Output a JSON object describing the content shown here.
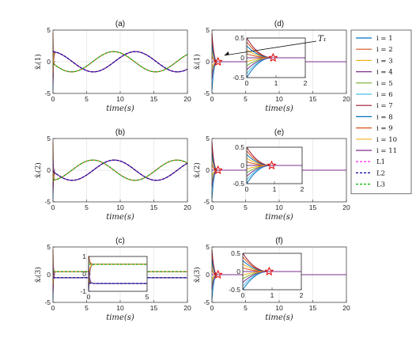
{
  "chart_data": {
    "type": "line",
    "series_colors": {
      "i = 1": "#0072BD",
      "i = 2": "#D95319",
      "i = 3": "#EDB120",
      "i = 4": "#7E2F8E",
      "i = 5": "#77AC30",
      "i = 6": "#4DBEEE",
      "i = 7": "#A2142F",
      "i = 8": "#0072BD",
      "i = 9": "#D95319",
      "i = 10": "#EDB120",
      "i = 11": "#7E2F8E",
      "L1": "#FF00FF",
      "L2": "#0000AA",
      "L3": "#00B400"
    },
    "legend": {
      "placement": "right",
      "entries": [
        "i = 1",
        "i = 2",
        "i = 3",
        "i = 4",
        "i = 5",
        "i = 6",
        "i = 7",
        "i = 8",
        "i = 9",
        "i = 10",
        "i = 11",
        "L1",
        "L2",
        "L3"
      ]
    },
    "panels": [
      {
        "id": "a",
        "title": "(a)",
        "ylabel": "x̃ᵢ(1)",
        "xlabel": "time(s)",
        "xlim": [
          0,
          20
        ],
        "ylim": [
          -5,
          5
        ],
        "xticks": [
          0,
          5,
          10,
          15,
          20
        ],
        "yticks": [
          -5,
          0,
          5
        ],
        "grid": true,
        "leaders": {
          "L1": {
            "amp": 1.6,
            "period": 12.5,
            "phase": 0.12
          },
          "L2": {
            "amp": 1.6,
            "period": 12.5,
            "phase": 0.12
          },
          "L3": {
            "amp": 1.6,
            "period": 12.5,
            "phase": 1.75
          }
        },
        "followers_transient": {
          "spread": 5,
          "decay": 0.06
        }
      },
      {
        "id": "b",
        "title": "(b)",
        "ylabel": "x̃ᵢ(2)",
        "xlabel": "time(s)",
        "xlim": [
          0,
          20
        ],
        "ylim": [
          -5,
          5
        ],
        "xticks": [
          0,
          5,
          10,
          15,
          20
        ],
        "yticks": [
          -5,
          0,
          5
        ],
        "grid": true,
        "leaders": {
          "L1": {
            "amp": 1.6,
            "period": 12.5,
            "phase": 1.7
          },
          "L2": {
            "amp": 1.6,
            "period": 12.5,
            "phase": 1.7
          },
          "L3": {
            "amp": 1.6,
            "period": 12.5,
            "phase": 3.3
          }
        },
        "followers_transient": {
          "spread": 5,
          "decay": 0.06
        }
      },
      {
        "id": "c",
        "title": "(c)",
        "ylabel": "x̃ᵢ(3)",
        "xlabel": "time(s)",
        "xlim": [
          0,
          20
        ],
        "ylim": [
          -5,
          5
        ],
        "xticks": [
          0,
          5,
          10,
          15,
          20
        ],
        "yticks": [
          -5,
          0,
          5
        ],
        "grid": true,
        "leaders": {
          "L1": {
            "amp": 0,
            "offset": 0.55
          },
          "L2": {
            "amp": 0,
            "offset": -0.55
          },
          "L3": {
            "amp": 0,
            "offset": 0.55
          }
        },
        "followers_transient": {
          "spread": 5,
          "decay": 0.06
        },
        "inset": {
          "xlim": [
            0,
            5
          ],
          "ylim": [
            -1,
            1
          ],
          "xticks": [
            0,
            5
          ],
          "yticks": [
            -1,
            0,
            1
          ]
        }
      },
      {
        "id": "d",
        "title": "(d)",
        "ylabel": "x̄ᵢ(1)",
        "xlabel": "time(s)",
        "xlim": [
          0,
          20
        ],
        "ylim": [
          -5,
          5
        ],
        "xticks": [
          0,
          5,
          10,
          15,
          20
        ],
        "yticks": [
          -5,
          0,
          5
        ],
        "grid": true,
        "star_markers": [
          0.9
        ],
        "settling_time_label": "T₁",
        "inset": {
          "xlim": [
            0,
            2
          ],
          "ylim": [
            -0.5,
            0.5
          ],
          "xticks": [
            0,
            1,
            2
          ],
          "yticks": [
            -0.5,
            0,
            0.5
          ]
        }
      },
      {
        "id": "e",
        "title": "(e)",
        "ylabel": "x̄ᵢ(2)",
        "xlabel": "time(s)",
        "xlim": [
          0,
          20
        ],
        "ylim": [
          -5,
          5
        ],
        "xticks": [
          0,
          5,
          10,
          15,
          20
        ],
        "yticks": [
          -5,
          0,
          5
        ],
        "grid": true,
        "star_markers": [
          0.9
        ],
        "inset": {
          "xlim": [
            0,
            2
          ],
          "ylim": [
            -0.5,
            0.5
          ],
          "xticks": [
            0,
            1,
            2
          ],
          "yticks": [
            -0.5,
            0,
            0.5
          ]
        }
      },
      {
        "id": "f",
        "title": "(f)",
        "ylabel": "x̄ᵢ(3)",
        "xlabel": "time(s)",
        "xlim": [
          0,
          20
        ],
        "ylim": [
          -5,
          5
        ],
        "xticks": [
          0,
          5,
          10,
          15,
          20
        ],
        "yticks": [
          -5,
          0,
          5
        ],
        "grid": true,
        "star_markers": [
          0.9
        ],
        "inset": {
          "xlim": [
            0,
            2
          ],
          "ylim": [
            -0.5,
            0.5
          ],
          "xticks": [
            0,
            1,
            2
          ],
          "yticks": [
            -0.5,
            0,
            0.5
          ]
        }
      }
    ]
  }
}
